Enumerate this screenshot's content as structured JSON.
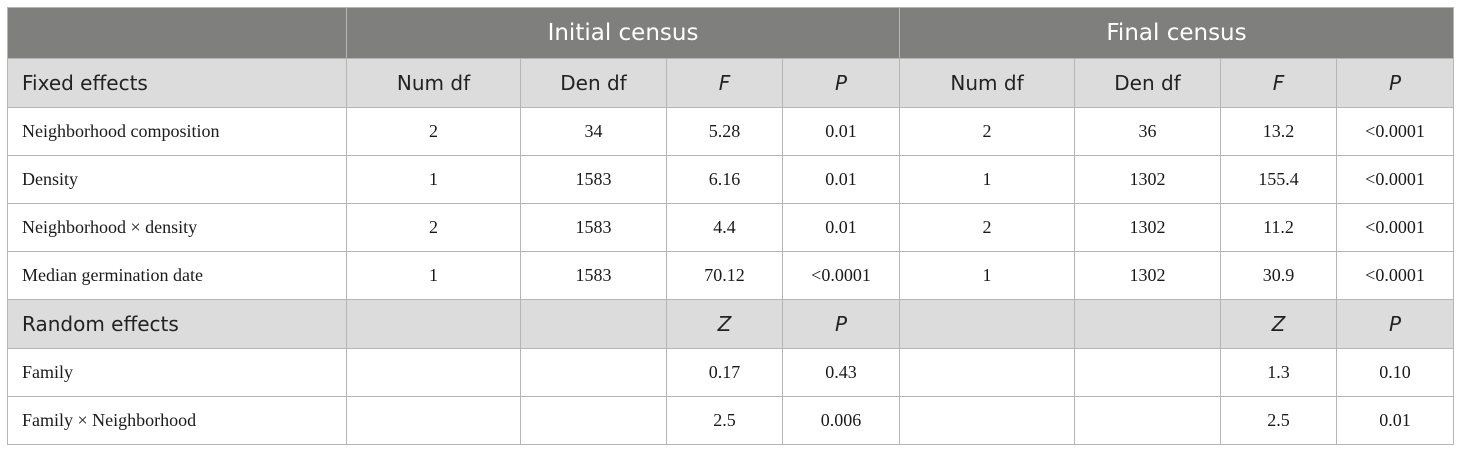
{
  "header": {
    "groups": [
      "Initial census",
      "Final census"
    ]
  },
  "fixed": {
    "title": "Fixed effects",
    "columns": [
      "Num df",
      "Den df",
      "F",
      "P",
      "Num df",
      "Den df",
      "F",
      "P"
    ],
    "rows": [
      {
        "label": "Neighborhood composition",
        "values": [
          "2",
          "34",
          "5.28",
          "0.01",
          "2",
          "36",
          "13.2",
          "<0.0001"
        ]
      },
      {
        "label": "Density",
        "values": [
          "1",
          "1583",
          "6.16",
          "0.01",
          "1",
          "1302",
          "155.4",
          "<0.0001"
        ]
      },
      {
        "label": "Neighborhood × density",
        "values": [
          "2",
          "1583",
          "4.4",
          "0.01",
          "2",
          "1302",
          "11.2",
          "<0.0001"
        ]
      },
      {
        "label": "Median germination date",
        "values": [
          "1",
          "1583",
          "70.12",
          "<0.0001",
          "1",
          "1302",
          "30.9",
          "<0.0001"
        ]
      }
    ]
  },
  "random": {
    "title": "Random effects",
    "columns": [
      "",
      "",
      "Z",
      "P",
      "",
      "",
      "Z",
      "P"
    ],
    "rows": [
      {
        "label": "Family",
        "values": [
          "",
          "",
          "0.17",
          "0.43",
          "",
          "",
          "1.3",
          "0.10"
        ]
      },
      {
        "label": "Family × Neighborhood",
        "values": [
          "",
          "",
          "2.5",
          "0.006",
          "",
          "",
          "2.5",
          "0.01"
        ]
      }
    ]
  }
}
